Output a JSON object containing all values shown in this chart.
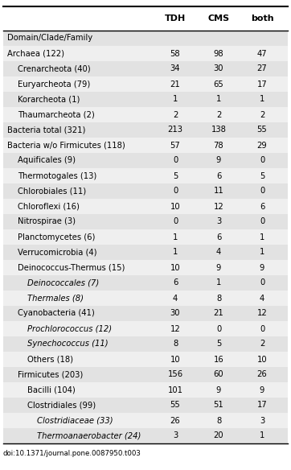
{
  "columns": [
    "TDH",
    "CMS",
    "both"
  ],
  "rows": [
    {
      "label": "Domain/Clade/Family",
      "indent": 0,
      "bold": false,
      "values": [
        "",
        "",
        ""
      ],
      "italic": false,
      "header_section": true
    },
    {
      "label": "Archaea (122)",
      "indent": 0,
      "bold": false,
      "values": [
        "58",
        "98",
        "47"
      ],
      "italic": false
    },
    {
      "label": "Crenarcheota (40)",
      "indent": 1,
      "bold": false,
      "values": [
        "34",
        "30",
        "27"
      ],
      "italic": false
    },
    {
      "label": "Euryarcheota (79)",
      "indent": 1,
      "bold": false,
      "values": [
        "21",
        "65",
        "17"
      ],
      "italic": false
    },
    {
      "label": "Korarcheota (1)",
      "indent": 1,
      "bold": false,
      "values": [
        "1",
        "1",
        "1"
      ],
      "italic": false
    },
    {
      "label": "Thaumarcheota (2)",
      "indent": 1,
      "bold": false,
      "values": [
        "2",
        "2",
        "2"
      ],
      "italic": false
    },
    {
      "label": "Bacteria total (321)",
      "indent": 0,
      "bold": false,
      "values": [
        "213",
        "138",
        "55"
      ],
      "italic": false
    },
    {
      "label": "Bacteria w/o Firmicutes (118)",
      "indent": 0,
      "bold": false,
      "values": [
        "57",
        "78",
        "29"
      ],
      "italic": false
    },
    {
      "label": "Aquificales (9)",
      "indent": 1,
      "bold": false,
      "values": [
        "0",
        "9",
        "0"
      ],
      "italic": false
    },
    {
      "label": "Thermotogales (13)",
      "indent": 1,
      "bold": false,
      "values": [
        "5",
        "6",
        "5"
      ],
      "italic": false
    },
    {
      "label": "Chlorobiales (11)",
      "indent": 1,
      "bold": false,
      "values": [
        "0",
        "11",
        "0"
      ],
      "italic": false
    },
    {
      "label": "Chloroflexi (16)",
      "indent": 1,
      "bold": false,
      "values": [
        "10",
        "12",
        "6"
      ],
      "italic": false
    },
    {
      "label": "Nitrospirae (3)",
      "indent": 1,
      "bold": false,
      "values": [
        "0",
        "3",
        "0"
      ],
      "italic": false
    },
    {
      "label": "Planctomycetes (6)",
      "indent": 1,
      "bold": false,
      "values": [
        "1",
        "6",
        "1"
      ],
      "italic": false
    },
    {
      "label": "Verrucomicrobia (4)",
      "indent": 1,
      "bold": false,
      "values": [
        "1",
        "4",
        "1"
      ],
      "italic": false
    },
    {
      "label": "Deinococcus-Thermus (15)",
      "indent": 1,
      "bold": false,
      "values": [
        "10",
        "9",
        "9"
      ],
      "italic": false
    },
    {
      "label": "Deinococcales (7)",
      "indent": 2,
      "bold": false,
      "values": [
        "6",
        "1",
        "0"
      ],
      "italic": true
    },
    {
      "label": "Thermales (8)",
      "indent": 2,
      "bold": false,
      "values": [
        "4",
        "8",
        "4"
      ],
      "italic": true
    },
    {
      "label": "Cyanobacteria (41)",
      "indent": 1,
      "bold": false,
      "values": [
        "30",
        "21",
        "12"
      ],
      "italic": false
    },
    {
      "label": "Prochlorococcus (12)",
      "indent": 2,
      "bold": false,
      "values": [
        "12",
        "0",
        "0"
      ],
      "italic": true
    },
    {
      "label": "Synechococcus (11)",
      "indent": 2,
      "bold": false,
      "values": [
        "8",
        "5",
        "2"
      ],
      "italic": true
    },
    {
      "label": "Others (18)",
      "indent": 2,
      "bold": false,
      "values": [
        "10",
        "16",
        "10"
      ],
      "italic": false
    },
    {
      "label": "Firmicutes (203)",
      "indent": 1,
      "bold": false,
      "values": [
        "156",
        "60",
        "26"
      ],
      "italic": false
    },
    {
      "label": "Bacilli (104)",
      "indent": 2,
      "bold": false,
      "values": [
        "101",
        "9",
        "9"
      ],
      "italic": false
    },
    {
      "label": "Clostridiales (99)",
      "indent": 2,
      "bold": false,
      "values": [
        "55",
        "51",
        "17"
      ],
      "italic": false
    },
    {
      "label": "Clostridiaceae (33)",
      "indent": 3,
      "bold": false,
      "values": [
        "26",
        "8",
        "3"
      ],
      "italic": true
    },
    {
      "label": "Thermoanaerobacter (24)",
      "indent": 3,
      "bold": false,
      "values": [
        "3",
        "20",
        "1"
      ],
      "italic": true
    }
  ],
  "footer": "doi:10.1371/journal.pone.0087950.t003",
  "bg_even": "#e2e2e2",
  "bg_odd": "#efefef",
  "col_header_bg": "#ffffff"
}
